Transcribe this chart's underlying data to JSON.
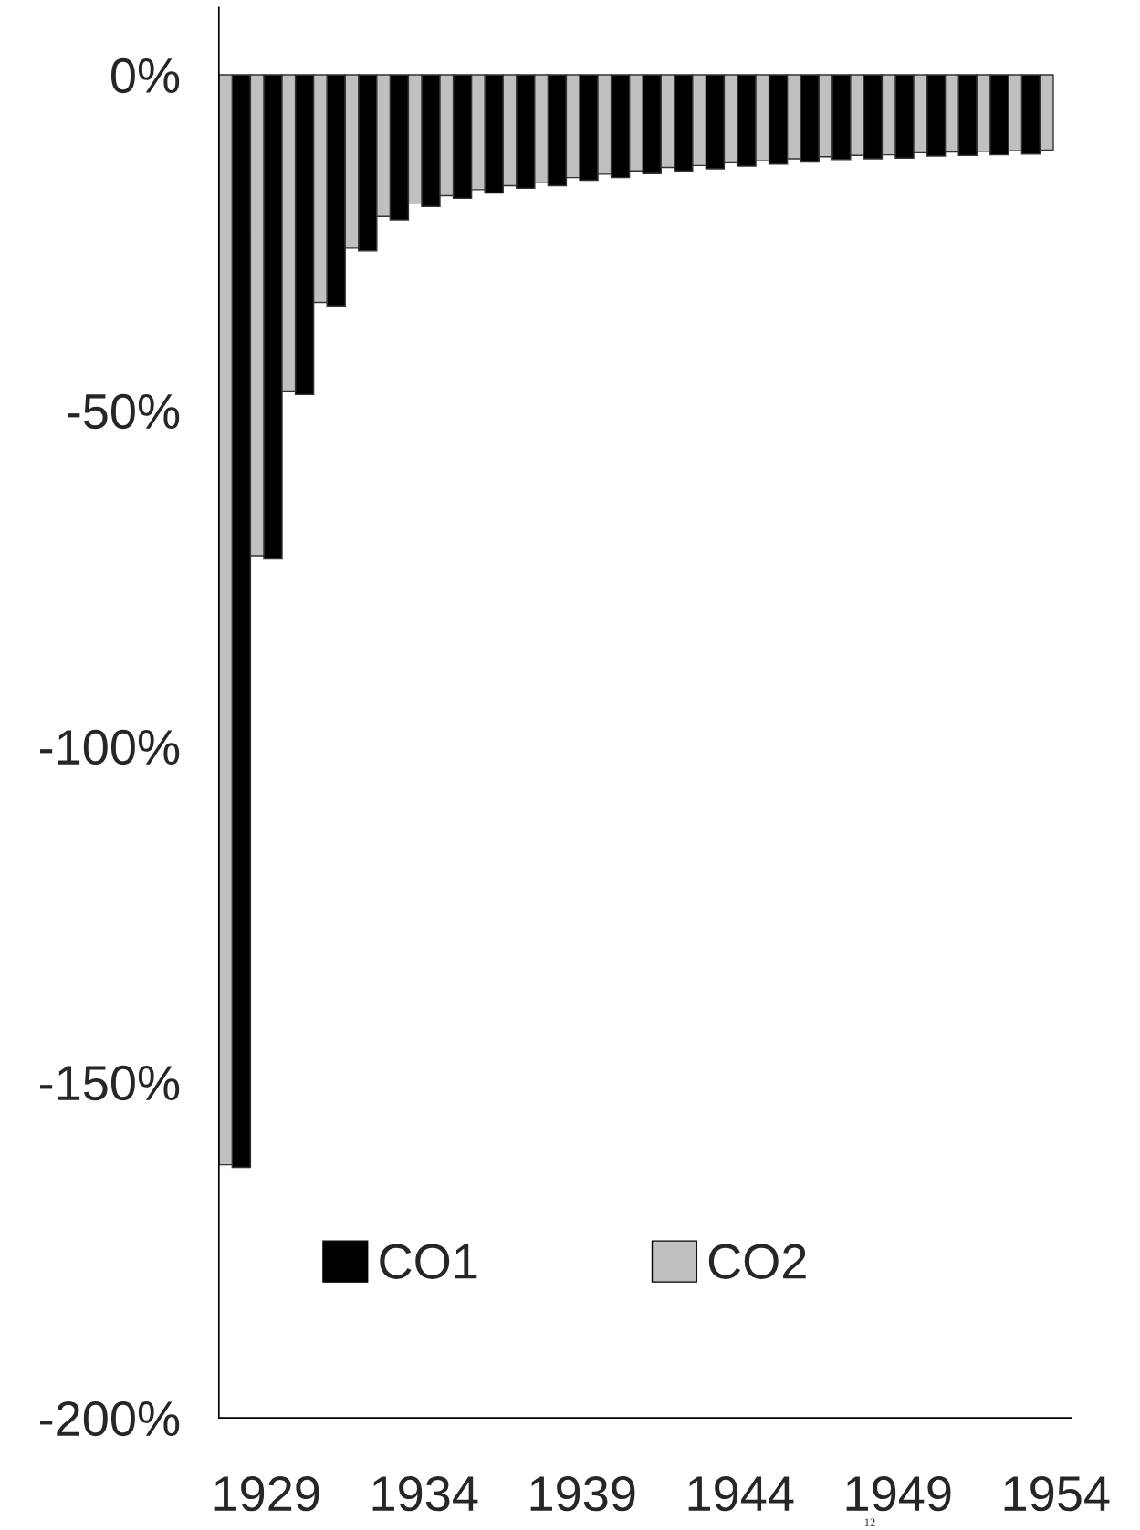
{
  "chart_data": {
    "type": "bar",
    "categories": [
      null,
      "1929",
      null,
      null,
      null,
      null,
      "1934",
      null,
      null,
      null,
      null,
      "1939",
      null,
      null,
      null,
      null,
      "1944",
      null,
      null,
      null,
      null,
      "1949",
      null,
      null,
      null,
      null,
      "1954"
    ],
    "series": [
      {
        "name": "CO1",
        "color": "#000000",
        "values": [
          -162.7,
          -72.1,
          -47.6,
          -34.4,
          -26.2,
          -21.6,
          -19.6,
          -18.4,
          -17.6,
          -16.9,
          -16.5,
          -15.7,
          -15.3,
          -14.7,
          -14.3,
          -14.0,
          -13.6,
          -13.3,
          -13.0,
          -12.6,
          -12.5,
          -12.4,
          -12.1,
          -12.0,
          -11.9,
          -11.8,
          null
        ]
      },
      {
        "name": "CO2",
        "color": "#c0c0c0",
        "values": [
          -162.3,
          -71.6,
          -47.2,
          -33.9,
          -25.8,
          -21.1,
          -19.1,
          -18.0,
          -17.1,
          -16.5,
          -16.0,
          -15.3,
          -14.8,
          -14.3,
          -13.8,
          -13.5,
          -13.1,
          -12.8,
          -12.5,
          -12.2,
          -12.0,
          -11.9,
          -11.6,
          -11.5,
          -11.4,
          -11.3,
          -11.2
        ]
      }
    ],
    "ylim": [
      -200,
      10
    ],
    "yticks": [
      {
        "value": -200,
        "label": "-200%"
      },
      {
        "value": -150,
        "label": "-150%"
      },
      {
        "value": -100,
        "label": "-100%"
      },
      {
        "value": -50,
        "label": "-50%"
      },
      {
        "value": 0,
        "label": "0%"
      }
    ],
    "legend": "bottom left",
    "grid": false,
    "annotations": [
      "12"
    ]
  }
}
